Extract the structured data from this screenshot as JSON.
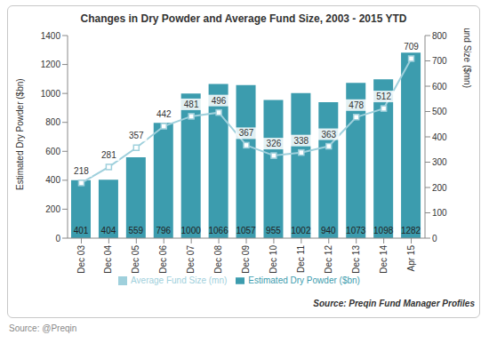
{
  "chart_data": {
    "type": "bar",
    "title": "Changes in Dry Powder and Average Fund Size, 2003 - 2015 YTD",
    "y_label": "Estimated Dry Powder ($bn)",
    "y2_label": "Average Fund Size ($mn)",
    "annotations": [
      "Source: Preqin Fund Manager Profiles",
      "Source: @Preqin"
    ],
    "categories": [
      "Dec 03",
      "Dec 04",
      "Dec 05",
      "Dec 06",
      "Dec 07",
      "Dec 08",
      "Dec 09",
      "Dec 10",
      "Dec 11",
      "Dec 12",
      "Dec 13",
      "Dec 14",
      "Apr 15"
    ],
    "series": [
      {
        "name": "Estimated Dry Powder ($bn)",
        "type": "bar",
        "color": "#3c9cae",
        "values": [
          401,
          404,
          559,
          796,
          1000,
          1066,
          1057,
          955,
          1002,
          940,
          1073,
          1098,
          1282
        ]
      },
      {
        "name": "Average Fund Size (mn)",
        "type": "line",
        "axis": "y2",
        "color": "#9fd0dc",
        "marker": "square",
        "line_style": "solid",
        "values": [
          218,
          281,
          357,
          442,
          481,
          496,
          367,
          326,
          338,
          363,
          478,
          512,
          709
        ]
      }
    ],
    "ylim": [
      0,
      1400
    ],
    "yticks": [
      0,
      200,
      400,
      600,
      800,
      1000,
      1200,
      1400
    ],
    "y2lim": [
      0,
      800
    ],
    "y2ticks": [
      0,
      100,
      200,
      300,
      400,
      500,
      600,
      700,
      800
    ],
    "data_labels": true,
    "grid": false,
    "legend": "bottom"
  }
}
